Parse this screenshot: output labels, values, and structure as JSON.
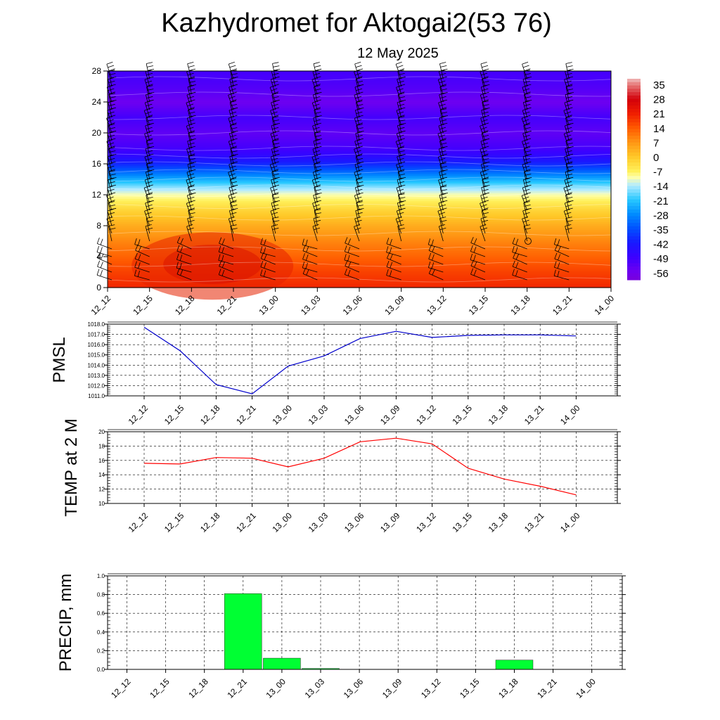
{
  "title": "Kazhydromet for Aktogai2(53 76)",
  "subtitle": "12 May 2025",
  "colors": {
    "pressure": "#0000cc",
    "temperature": "#ff0000",
    "precip": "#00ff33"
  },
  "chart_data": [
    {
      "type": "heatmap",
      "description_of_axes": "time vs height",
      "x": [
        "12_12",
        "12_15",
        "12_18",
        "12_21",
        "13_00",
        "13_03",
        "13_06",
        "13_09",
        "13_12",
        "13_15",
        "13_18",
        "13_21",
        "14_00"
      ],
      "y_ticks": [
        "0",
        "4",
        "8",
        "12",
        "16",
        "20",
        "24",
        "28"
      ],
      "ylim": [
        0,
        28
      ],
      "colorbar_labels": [
        "35",
        "28",
        "21",
        "14",
        "7",
        "0",
        "-7",
        "-14",
        "-21",
        "-28",
        "-35",
        "-42",
        "-49",
        "-56"
      ],
      "colorbar_range": [
        -60,
        38
      ],
      "overlay": "wind barbs"
    },
    {
      "type": "line",
      "ylabel": "PMSL",
      "x": [
        "12_12",
        "12_15",
        "12_18",
        "12_21",
        "13_00",
        "13_03",
        "13_06",
        "13_09",
        "13_12",
        "13_15",
        "13_18",
        "13_21",
        "14_00"
      ],
      "values": [
        1017.7,
        1015.4,
        1012.1,
        1011.2,
        1013.9,
        1014.9,
        1016.6,
        1017.3,
        1016.7,
        1016.9,
        1016.95,
        1016.95,
        1016.85
      ],
      "ylim": [
        1011.0,
        1018.0
      ],
      "y_ticks": [
        "1011.0",
        "1012.0",
        "1013.0",
        "1014.0",
        "1015.0",
        "1016.0",
        "1017.0",
        "1018.0"
      ],
      "grid": true
    },
    {
      "type": "line",
      "ylabel": "TEMP at 2 M",
      "x": [
        "12_12",
        "12_15",
        "12_18",
        "12_21",
        "13_00",
        "13_03",
        "13_06",
        "13_09",
        "13_12",
        "13_15",
        "13_18",
        "13_21",
        "14_00"
      ],
      "values": [
        15.6,
        15.5,
        16.4,
        16.3,
        15.1,
        16.3,
        18.6,
        19.1,
        18.3,
        14.9,
        13.4,
        12.4,
        11.2
      ],
      "ylim": [
        10,
        20
      ],
      "y_ticks": [
        "10",
        "12",
        "14",
        "16",
        "18",
        "20"
      ],
      "grid": true
    },
    {
      "type": "bar",
      "ylabel": "PRECIP, mm",
      "categories": [
        "12_12",
        "12_15",
        "12_18",
        "12_21",
        "13_00",
        "13_03",
        "13_06",
        "13_09",
        "13_12",
        "13_15",
        "13_18",
        "13_21",
        "14_00"
      ],
      "values": [
        0,
        0,
        0,
        0.81,
        0.12,
        0.01,
        0,
        0,
        0,
        0,
        0.1,
        0,
        0
      ],
      "ylim": [
        0,
        1.0
      ],
      "y_ticks": [
        "0.0",
        "0.2",
        "0.4",
        "0.6",
        "0.8",
        "1.0"
      ],
      "grid": true
    }
  ]
}
